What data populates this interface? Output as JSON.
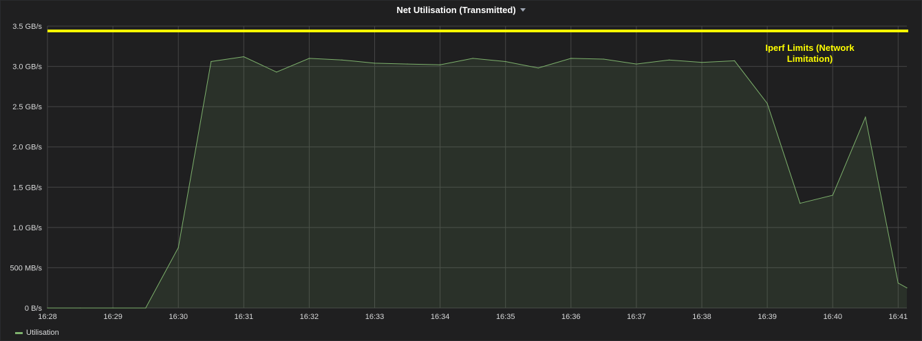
{
  "panel": {
    "title": "Net Utilisation (Transmitted)"
  },
  "chart_data": {
    "type": "area",
    "title": "Net Utilisation (Transmitted)",
    "xlabel": "",
    "ylabel": "",
    "x_ticks": [
      "16:28",
      "16:29",
      "16:30",
      "16:31",
      "16:32",
      "16:33",
      "16:34",
      "16:35",
      "16:36",
      "16:37",
      "16:38",
      "16:39",
      "16:40",
      "16:41"
    ],
    "y_ticks": [
      "0 B/s",
      "500 MB/s",
      "1.0 GB/s",
      "1.5 GB/s",
      "2.0 GB/s",
      "2.5 GB/s",
      "3.0 GB/s",
      "3.5 GB/s"
    ],
    "x_range": [
      "16:28",
      "16:41:08"
    ],
    "ylim_gbps": [
      0,
      3.5
    ],
    "grid": true,
    "legend_position": "bottom-left",
    "series": [
      {
        "name": "Utilisation",
        "color": "#7eb26d",
        "x": [
          "16:28",
          "16:28:30",
          "16:29",
          "16:29:30",
          "16:30",
          "16:30:30",
          "16:31",
          "16:31:30",
          "16:32",
          "16:32:30",
          "16:33",
          "16:33:30",
          "16:34",
          "16:34:30",
          "16:35",
          "16:35:30",
          "16:36",
          "16:36:30",
          "16:37",
          "16:37:30",
          "16:38",
          "16:38:30",
          "16:39",
          "16:39:30",
          "16:40",
          "16:40:30",
          "16:41",
          "16:41:08"
        ],
        "y_gbps": [
          0,
          0,
          0,
          0,
          0.75,
          3.06,
          3.12,
          2.93,
          3.1,
          3.08,
          3.04,
          3.03,
          3.02,
          3.1,
          3.06,
          2.98,
          3.1,
          3.09,
          3.03,
          3.08,
          3.05,
          3.07,
          2.54,
          1.3,
          1.4,
          2.37,
          0.31,
          0.25
        ]
      }
    ],
    "threshold": {
      "value_gbps": 3.44,
      "color": "#ffff00",
      "label": "Iperf Limits (Network Limitation)"
    }
  },
  "colors": {
    "background": "#1f1f20",
    "grid": "#464646",
    "axis_text": "#d8d9da",
    "series": "#7eb26d",
    "threshold": "#ffff00"
  }
}
